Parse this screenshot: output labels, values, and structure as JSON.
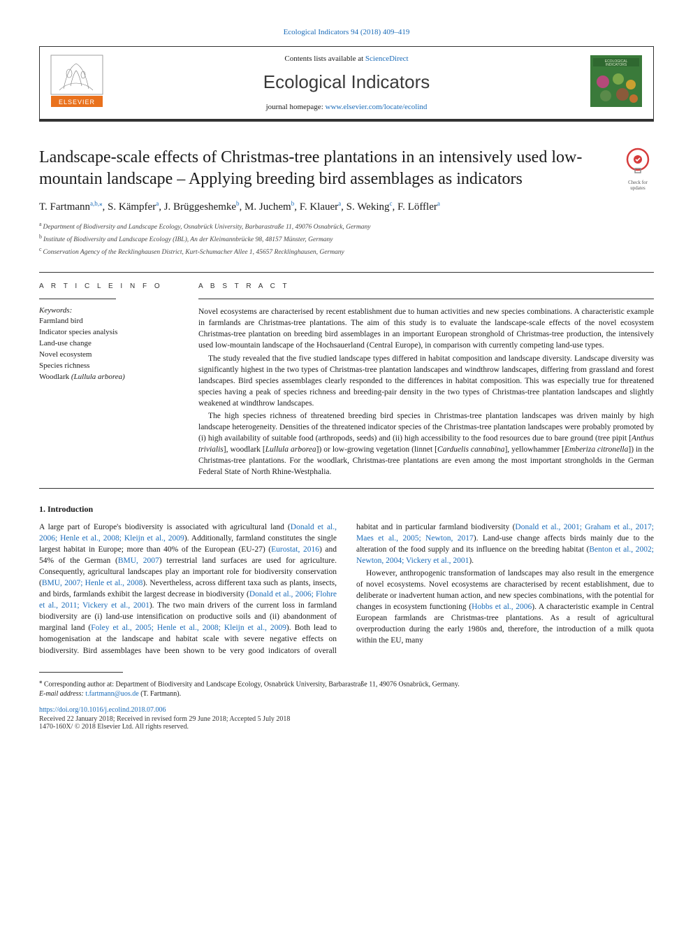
{
  "journalRef": {
    "text": "Ecological Indicators 94 (2018) 409–419",
    "href": "#"
  },
  "header": {
    "contentsLists": {
      "prefix": "Contents lists available at ",
      "linkText": "ScienceDirect",
      "href": "#"
    },
    "journalName": "Ecological Indicators",
    "homepage": {
      "prefix": "journal homepage: ",
      "linkText": "www.elsevier.com/locate/ecolind",
      "href": "#"
    },
    "publisherLogoLabel": "ELSEVIER",
    "coverLabelTop": "ECOLOGICAL",
    "coverLabelBottom": "INDICATORS"
  },
  "checkBadge": {
    "line1": "Check for",
    "line2": "updates"
  },
  "title": "Landscape-scale effects of Christmas-tree plantations in an intensively used low-mountain landscape – Applying breeding bird assemblages as indicators",
  "authors": [
    {
      "name": "T. Fartmann",
      "markers": "a,b,",
      "corresponding": true
    },
    {
      "name": "S. Kämpfer",
      "markers": "a"
    },
    {
      "name": "J. Brüggeshemke",
      "markers": "b"
    },
    {
      "name": "M. Juchem",
      "markers": "b"
    },
    {
      "name": "F. Klauer",
      "markers": "a"
    },
    {
      "name": "S. Weking",
      "markers": "c"
    },
    {
      "name": "F. Löffler",
      "markers": "a"
    }
  ],
  "affiliations": [
    {
      "marker": "a",
      "text": "Department of Biodiversity and Landscape Ecology, Osnabrück University, Barbarastraße 11, 49076 Osnabrück, Germany"
    },
    {
      "marker": "b",
      "text": "Institute of Biodiversity and Landscape Ecology (IBL), An der Kleimannbrücke 98, 48157 Münster, Germany"
    },
    {
      "marker": "c",
      "text": "Conservation Agency of the Recklinghausen District, Kurt-Schumacher Allee 1, 45657 Recklinghausen, Germany"
    }
  ],
  "articleInfoLabel": "A R T I C L E  I N F O",
  "abstractLabel": "A B S T R A C T",
  "keywordsLabel": "Keywords:",
  "keywords": [
    "Farmland bird",
    "Indicator species analysis",
    "Land-use change",
    "Novel ecosystem",
    "Species richness",
    "Woodlark (Lullula arborea)"
  ],
  "abstract": [
    "Novel ecosystems are characterised by recent establishment due to human activities and new species combinations. A characteristic example in farmlands are Christmas-tree plantations. The aim of this study is to evaluate the landscape-scale effects of the novel ecosystem Christmas-tree plantation on breeding bird assemblages in an important European stronghold of Christmas-tree production, the intensively used low-mountain landscape of the Hochsauerland (Central Europe), in comparison with currently competing land-use types.",
    "The study revealed that the five studied landscape types differed in habitat composition and landscape diversity. Landscape diversity was significantly highest in the two types of Christmas-tree plantation landscapes and windthrow landscapes, differing from grassland and forest landscapes. Bird species assemblages clearly responded to the differences in habitat composition. This was especially true for threatened species having a peak of species richness and breeding-pair density in the two types of Christmas-tree plantation landscapes and slightly weakened at windthrow landscapes.",
    "The high species richness of threatened breeding bird species in Christmas-tree plantation landscapes was driven mainly by high landscape heterogeneity. Densities of the threatened indicator species of the Christmas-tree plantation landscapes were probably promoted by (i) high availability of suitable food (arthropods, seeds) and (ii) high accessibility to the food resources due to bare ground (tree pipit [Anthus trivialis], woodlark [Lullula arborea]) or low-growing vegetation (linnet [Carduelis cannabina], yellowhammer [Emberiza citronella]) in the Christmas-tree plantations. For the woodlark, Christmas-tree plantations are even among the most important strongholds in the German Federal State of North Rhine-Westphalia."
  ],
  "introHeading": "1. Introduction",
  "intro": {
    "p1_pre": "A large part of Europe's biodiversity is associated with agricultural land (",
    "p1_ref1": "Donald et al., 2006; Henle et al., 2008; Kleijn et al., 2009",
    "p1_mid1": "). Additionally, farmland constitutes the single largest habitat in Europe; more than 40% of the European (EU-27) (",
    "p1_ref2": "Eurostat, 2016",
    "p1_mid2": ") and 54% of the German (",
    "p1_ref3": "BMU, 2007",
    "p1_mid3": ") terrestrial land surfaces are used for agriculture. Consequently, agricultural landscapes play an important role for biodiversity conservation (",
    "p1_ref4": "BMU, 2007; Henle et al., 2008",
    "p1_mid4": "). Nevertheless, across different taxa such as plants, insects, and birds, farmlands exhibit the largest decrease in biodiversity (",
    "p1_ref5": "Donald et al., 2006; Flohre et al., 2011; Vickery et al., 2001",
    "p1_mid5": "). The two main drivers of the current loss in farmland biodiversity are (i) land-use intensification on productive soils and (ii) abandonment of marginal land (",
    "p1_ref6": "Foley et al., 2005; Henle et al., 2008; Kleijn et al., 2009",
    "p1_post": "). Both lead to homogenisation at the landscape and habitat scale with severe negative effects on biodiversity. Bird assemblages have been shown to be very good indicators of overall habitat and in particular farmland biodiversity (",
    "p1_ref7": "Donald et al., 2001; Graham et al., 2017; Maes et al., 2005; Newton, 2017",
    "p1_mid6": "). Land-use change affects birds mainly due to the alteration of the food supply and its influence on the breeding habitat (",
    "p1_ref8": "Benton et al., 2002; Newton, 2004; Vickery et al., 2001",
    "p1_end": ").",
    "p2_pre": "However, anthropogenic transformation of landscapes may also result in the emergence of novel ecosystems. Novel ecosystems are characterised by recent establishment, due to deliberate or inadvertent human action, and new species combinations, with the potential for changes in ecosystem functioning (",
    "p2_ref1": "Hobbs et al., 2006",
    "p2_post": "). A characteristic example in Central European farmlands are Christmas-tree plantations. As a result of agricultural overproduction during the early 1980s and, therefore, the introduction of a milk quota within the EU, many"
  },
  "footnote": {
    "text": "Corresponding author at: Department of Biodiversity and Landscape Ecology, Osnabrück University, Barbarastraße 11, 49076 Osnabrück, Germany.",
    "emailLabel": "E-mail address: ",
    "email": "t.fartmann@uos.de",
    "emailSuffix": " (T. Fartmann)."
  },
  "doi": {
    "href": "#",
    "text": "https://doi.org/10.1016/j.ecolind.2018.07.006"
  },
  "received": "Received 22 January 2018; Received in revised form 29 June 2018; Accepted 5 July 2018",
  "copyright": "1470-160X/ © 2018 Elsevier Ltd. All rights reserved.",
  "colors": {
    "link": "#1a6bb8",
    "text": "#1a1a1a",
    "rule": "#333333",
    "elsevierOrange": "#e9711c",
    "coverGreen": "#3a7a3a",
    "badgeRed": "#d63c3c"
  },
  "typography": {
    "titleFontSize": 24,
    "journalNameFontSize": 26,
    "authorsFontSize": 15,
    "bodyFontSize": 11.5,
    "affilFontSize": 9.5,
    "sectionLabelLetterSpacing": 4
  }
}
